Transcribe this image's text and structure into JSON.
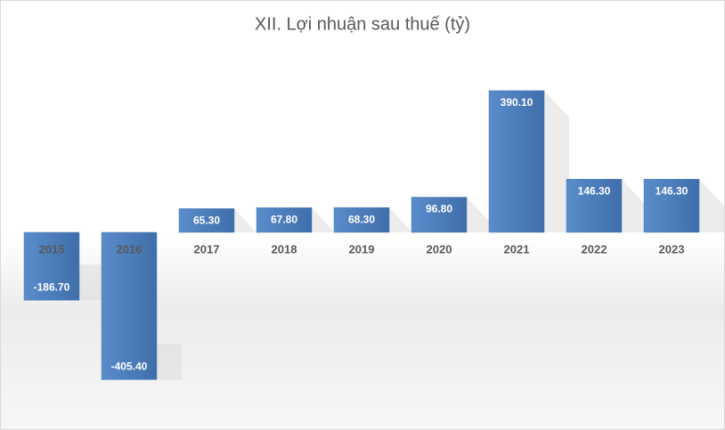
{
  "chart_data": {
    "type": "bar",
    "title": "XII. Lợi nhuận sau thuế (tỷ)",
    "categories": [
      "2015",
      "2016",
      "2017",
      "2018",
      "2019",
      "2020",
      "2021",
      "2022",
      "2023"
    ],
    "values": [
      -186.7,
      -405.4,
      65.3,
      67.8,
      68.3,
      96.8,
      390.1,
      146.3,
      146.3
    ],
    "value_labels": [
      "-186.70",
      "-405.40",
      "65.30",
      "67.80",
      "68.30",
      "96.80",
      "390.10",
      "146.30",
      "146.30"
    ],
    "color": "#4a7ebb",
    "ylim": [
      -500,
      500
    ]
  }
}
